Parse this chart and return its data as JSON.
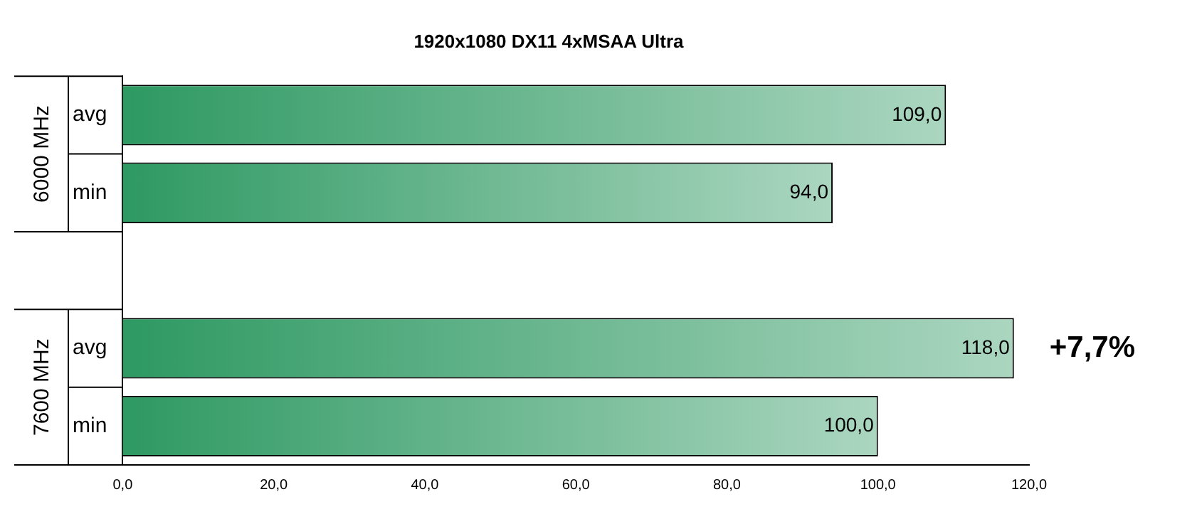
{
  "chart_data": {
    "type": "bar",
    "orientation": "horizontal",
    "title": "1920x1080 DX11 4xMSAA Ultra",
    "categories": [
      "avg",
      "min",
      null,
      "avg",
      "min"
    ],
    "values": [
      109.0,
      94.0,
      null,
      118.0,
      100.0
    ],
    "value_labels": [
      "109,0",
      "94,0",
      null,
      "118,0",
      "100,0"
    ],
    "color": "#2e9962",
    "xlim": [
      0,
      120
    ],
    "xticks": [
      {
        "value": 0,
        "label": "0,0"
      },
      {
        "value": 20,
        "label": "20,0"
      },
      {
        "value": 40,
        "label": "40,0"
      },
      {
        "value": 60,
        "label": "60,0"
      },
      {
        "value": 80,
        "label": "80,0"
      },
      {
        "value": 100,
        "label": "100,0"
      },
      {
        "value": 120,
        "label": "120,0"
      }
    ],
    "annotations": [
      "6000 MHz",
      "7600 MHz",
      "+7,7%"
    ],
    "grid": false,
    "legend": false
  }
}
